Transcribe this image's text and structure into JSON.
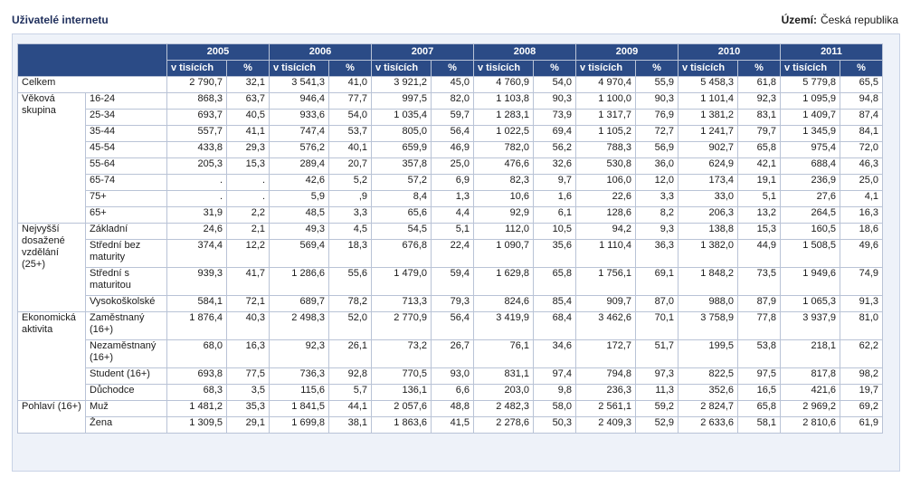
{
  "title": "Uživatelé internetu",
  "region_label": "Území:",
  "region_value": "Česká republika",
  "years": [
    "2005",
    "2006",
    "2007",
    "2008",
    "2009",
    "2010",
    "2011"
  ],
  "subheaders": {
    "abs": "v tisících",
    "pct": "%"
  },
  "rows": [
    {
      "group": "Celkem",
      "label": "",
      "tall": false,
      "values": [
        "2 790,7",
        "32,1",
        "3 541,3",
        "41,0",
        "3 921,2",
        "45,0",
        "4 760,9",
        "54,0",
        "4 970,4",
        "55,9",
        "5 458,3",
        "61,8",
        "5 779,8",
        "65,5"
      ]
    },
    {
      "group": "Věková skupina",
      "label": "16-24",
      "tall": false,
      "values": [
        "868,3",
        "63,7",
        "946,4",
        "77,7",
        "997,5",
        "82,0",
        "1 103,8",
        "90,3",
        "1 100,0",
        "90,3",
        "1 101,4",
        "92,3",
        "1 095,9",
        "94,8"
      ]
    },
    {
      "group": "",
      "label": "25-34",
      "tall": false,
      "values": [
        "693,7",
        "40,5",
        "933,6",
        "54,0",
        "1 035,4",
        "59,7",
        "1 283,1",
        "73,9",
        "1 317,7",
        "76,9",
        "1 381,2",
        "83,1",
        "1 409,7",
        "87,4"
      ]
    },
    {
      "group": "",
      "label": "35-44",
      "tall": false,
      "values": [
        "557,7",
        "41,1",
        "747,4",
        "53,7",
        "805,0",
        "56,4",
        "1 022,5",
        "69,4",
        "1 105,2",
        "72,7",
        "1 241,7",
        "79,7",
        "1 345,9",
        "84,1"
      ]
    },
    {
      "group": "",
      "label": "45-54",
      "tall": false,
      "values": [
        "433,8",
        "29,3",
        "576,2",
        "40,1",
        "659,9",
        "46,9",
        "782,0",
        "56,2",
        "788,3",
        "56,9",
        "902,7",
        "65,8",
        "975,4",
        "72,0"
      ]
    },
    {
      "group": "",
      "label": "55-64",
      "tall": false,
      "values": [
        "205,3",
        "15,3",
        "289,4",
        "20,7",
        "357,8",
        "25,0",
        "476,6",
        "32,6",
        "530,8",
        "36,0",
        "624,9",
        "42,1",
        "688,4",
        "46,3"
      ]
    },
    {
      "group": "",
      "label": "65-74",
      "tall": false,
      "values": [
        ".",
        ".",
        "42,6",
        "5,2",
        "57,2",
        "6,9",
        "82,3",
        "9,7",
        "106,0",
        "12,0",
        "173,4",
        "19,1",
        "236,9",
        "25,0"
      ]
    },
    {
      "group": "",
      "label": "75+",
      "tall": false,
      "values": [
        ".",
        ".",
        "5,9",
        ",9",
        "8,4",
        "1,3",
        "10,6",
        "1,6",
        "22,6",
        "3,3",
        "33,0",
        "5,1",
        "27,6",
        "4,1"
      ]
    },
    {
      "group": "",
      "label": "65+",
      "tall": false,
      "values": [
        "31,9",
        "2,2",
        "48,5",
        "3,3",
        "65,6",
        "4,4",
        "92,9",
        "6,1",
        "128,6",
        "8,2",
        "206,3",
        "13,2",
        "264,5",
        "16,3"
      ]
    },
    {
      "group": "Nejvyšší dosažené vzdělání (25+)",
      "label": "Základní",
      "tall": false,
      "values": [
        "24,6",
        "2,1",
        "49,3",
        "4,5",
        "54,5",
        "5,1",
        "112,0",
        "10,5",
        "94,2",
        "9,3",
        "138,8",
        "15,3",
        "160,5",
        "18,6"
      ]
    },
    {
      "group": "",
      "label": "Střední bez maturity",
      "tall": true,
      "values": [
        "374,4",
        "12,2",
        "569,4",
        "18,3",
        "676,8",
        "22,4",
        "1 090,7",
        "35,6",
        "1 110,4",
        "36,3",
        "1 382,0",
        "44,9",
        "1 508,5",
        "49,6"
      ]
    },
    {
      "group": "",
      "label": "Střední s maturitou",
      "tall": true,
      "values": [
        "939,3",
        "41,7",
        "1 286,6",
        "55,6",
        "1 479,0",
        "59,4",
        "1 629,8",
        "65,8",
        "1 756,1",
        "69,1",
        "1 848,2",
        "73,5",
        "1 949,6",
        "74,9"
      ]
    },
    {
      "group": "",
      "label": "Vysokoškolské",
      "tall": false,
      "values": [
        "584,1",
        "72,1",
        "689,7",
        "78,2",
        "713,3",
        "79,3",
        "824,6",
        "85,4",
        "909,7",
        "87,0",
        "988,0",
        "87,9",
        "1 065,3",
        "91,3"
      ]
    },
    {
      "group": "Ekonomická aktivita",
      "label": "Zaměstnaný (16+)",
      "tall": true,
      "values": [
        "1 876,4",
        "40,3",
        "2 498,3",
        "52,0",
        "2 770,9",
        "56,4",
        "3 419,9",
        "68,4",
        "3 462,6",
        "70,1",
        "3 758,9",
        "77,8",
        "3 937,9",
        "81,0"
      ]
    },
    {
      "group": "",
      "label": "Nezaměstnaný (16+)",
      "tall": true,
      "values": [
        "68,0",
        "16,3",
        "92,3",
        "26,1",
        "73,2",
        "26,7",
        "76,1",
        "34,6",
        "172,7",
        "51,7",
        "199,5",
        "53,8",
        "218,1",
        "62,2"
      ]
    },
    {
      "group": "",
      "label": "Student (16+)",
      "tall": false,
      "values": [
        "693,8",
        "77,5",
        "736,3",
        "92,8",
        "770,5",
        "93,0",
        "831,1",
        "97,4",
        "794,8",
        "97,3",
        "822,5",
        "97,5",
        "817,8",
        "98,2"
      ]
    },
    {
      "group": "",
      "label": "Důchodce",
      "tall": false,
      "values": [
        "68,3",
        "3,5",
        "115,6",
        "5,7",
        "136,1",
        "6,6",
        "203,0",
        "9,8",
        "236,3",
        "11,3",
        "352,6",
        "16,5",
        "421,6",
        "19,7"
      ]
    },
    {
      "group": "Pohlaví (16+)",
      "label": "Muž",
      "tall": false,
      "values": [
        "1 481,2",
        "35,3",
        "1 841,5",
        "44,1",
        "2 057,6",
        "48,8",
        "2 482,3",
        "58,0",
        "2 561,1",
        "59,2",
        "2 824,7",
        "65,8",
        "2 969,2",
        "69,2"
      ]
    },
    {
      "group": "",
      "label": "Žena",
      "tall": false,
      "values": [
        "1 309,5",
        "29,1",
        "1 699,8",
        "38,1",
        "1 863,6",
        "41,5",
        "2 278,6",
        "50,3",
        "2 409,3",
        "52,9",
        "2 633,6",
        "58,1",
        "2 810,6",
        "61,9"
      ]
    }
  ],
  "spans": [
    1,
    8,
    0,
    0,
    0,
    0,
    0,
    0,
    0,
    4,
    0,
    0,
    0,
    4,
    0,
    0,
    0,
    2,
    0
  ]
}
